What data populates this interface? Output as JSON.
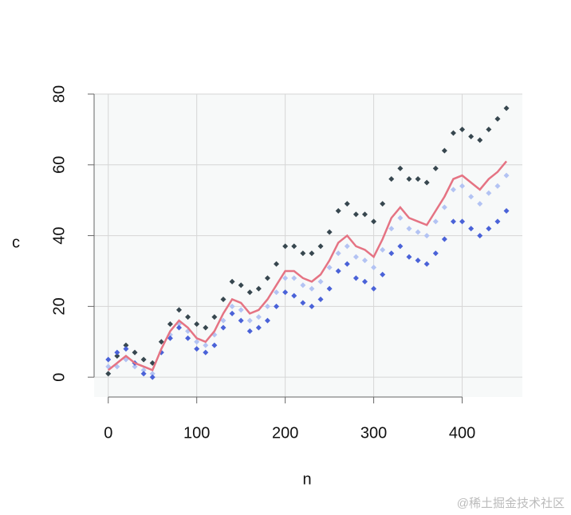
{
  "chart_data": {
    "type": "scatter",
    "xlabel": "n",
    "ylabel": "c",
    "x": [
      0,
      10,
      20,
      30,
      40,
      50,
      60,
      70,
      80,
      90,
      100,
      110,
      120,
      130,
      140,
      150,
      160,
      170,
      180,
      190,
      200,
      210,
      220,
      230,
      240,
      250,
      260,
      270,
      280,
      290,
      300,
      310,
      320,
      330,
      340,
      350,
      360,
      370,
      380,
      390,
      400,
      410,
      420,
      430,
      440,
      450
    ],
    "series": [
      {
        "color": "#37474f",
        "mode": "points",
        "values": [
          1,
          6,
          9,
          7,
          5,
          4,
          10,
          15,
          19,
          17,
          15,
          14,
          17,
          22,
          27,
          26,
          24,
          25,
          28,
          32,
          37,
          37,
          35,
          35,
          37,
          41,
          47,
          49,
          46,
          46,
          44,
          49,
          56,
          59,
          56,
          56,
          55,
          59,
          64,
          69,
          70,
          68,
          67,
          70,
          73,
          76
        ]
      },
      {
        "color": "#b3c3f3",
        "mode": "points",
        "values": [
          3,
          3,
          5,
          3,
          2,
          1,
          7,
          12,
          15,
          13,
          10,
          9,
          12,
          16,
          20,
          19,
          16,
          17,
          20,
          24,
          28,
          28,
          26,
          25,
          27,
          31,
          35,
          37,
          34,
          33,
          31,
          36,
          42,
          45,
          42,
          41,
          40,
          44,
          48,
          53,
          54,
          51,
          49,
          52,
          54,
          57
        ]
      },
      {
        "color": "#4a62d8",
        "mode": "points",
        "values": [
          5,
          7,
          8,
          4,
          1,
          0,
          7,
          11,
          14,
          11,
          8,
          7,
          9,
          14,
          18,
          16,
          13,
          14,
          16,
          20,
          24,
          23,
          21,
          20,
          22,
          25,
          30,
          32,
          28,
          27,
          25,
          29,
          35,
          37,
          34,
          33,
          32,
          35,
          39,
          44,
          44,
          42,
          40,
          42,
          44,
          47
        ]
      },
      {
        "color": "#e57383",
        "mode": "line",
        "values": [
          2,
          4,
          6,
          4,
          3,
          2,
          8,
          13,
          16,
          14,
          11,
          10,
          13,
          18,
          22,
          21,
          18,
          19,
          22,
          26,
          30,
          30,
          28,
          27,
          29,
          33,
          38,
          40,
          37,
          36,
          34,
          39,
          45,
          48,
          45,
          44,
          43,
          47,
          51,
          56,
          57,
          55,
          53,
          56,
          58,
          61
        ]
      }
    ],
    "xlim": [
      -16,
      468
    ],
    "ylim": [
      -5.6,
      80
    ],
    "xticks": [
      0,
      100,
      200,
      300,
      400
    ],
    "yticks": [
      0,
      20,
      40,
      60,
      80
    ],
    "grid": true,
    "watermark": "@稀土掘金技术社区"
  }
}
